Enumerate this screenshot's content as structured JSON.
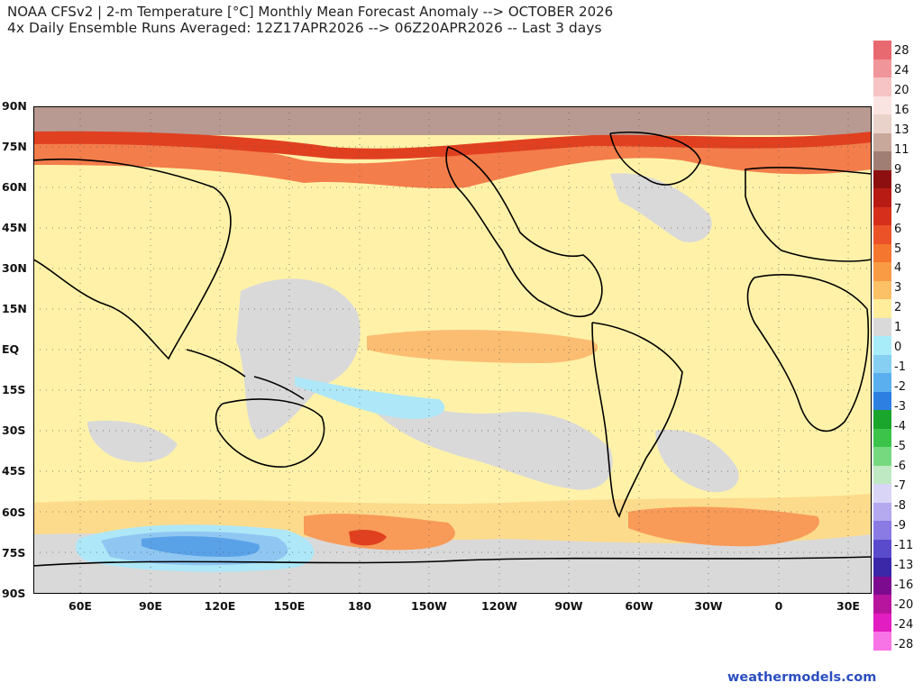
{
  "header": {
    "title_line1": "NOAA CFSv2 | 2-m Temperature [°C] Monthly Mean Forecast Anomaly --> OCTOBER 2026",
    "title_line2": "4x Daily Ensemble Runs Averaged: 12Z17APR2026 --> 06Z20APR2026 -- Last 3 days"
  },
  "map": {
    "lat_labels": [
      "90N",
      "75N",
      "60N",
      "45N",
      "30N",
      "15N",
      "EQ",
      "15S",
      "30S",
      "45S",
      "60S",
      "75S",
      "90S"
    ],
    "lon_labels": [
      "60E",
      "90E",
      "120E",
      "150E",
      "180",
      "150W",
      "120W",
      "90W",
      "60W",
      "30W",
      "0",
      "30E"
    ],
    "colors": {
      "ocean_neutral": "#d9d9d9",
      "warm1": "#fff2a8",
      "warm2": "#fddb8c",
      "warm3": "#fbbd72",
      "warm4": "#f89a58",
      "warm5": "#f27040",
      "warm6": "#e04020",
      "arctic": "#b89a92",
      "cool1": "#aee7f7",
      "cool2": "#8fc7f2",
      "cool3": "#5aa2e8",
      "coast": "#000000"
    }
  },
  "colorbar": {
    "labels": [
      "28",
      "24",
      "20",
      "16",
      "13",
      "11",
      "9",
      "8",
      "7",
      "6",
      "5",
      "4",
      "3",
      "2",
      "1",
      "0",
      "-1",
      "-2",
      "-3",
      "-4",
      "-5",
      "-6",
      "-7",
      "-8",
      "-9",
      "-11",
      "-13",
      "-16",
      "-20",
      "-24",
      "-28"
    ],
    "colors": [
      "#e86a70",
      "#f0959a",
      "#f7c4c5",
      "#fae4e2",
      "#e9d2c9",
      "#c9a89c",
      "#a07e73",
      "#8e0f0f",
      "#b81b14",
      "#d6301c",
      "#eb5228",
      "#f4762f",
      "#f99b45",
      "#fcc067",
      "#ffed9c",
      "#d9d9d9",
      "#a9ecf9",
      "#86cff3",
      "#5ab0ee",
      "#2e7fe2",
      "#1aa52c",
      "#3bc34a",
      "#77d97f",
      "#bfe9c2",
      "#d9d5f7",
      "#b4a8ef",
      "#8a7ae3",
      "#5a4bcd",
      "#3a28a8",
      "#7c0b8f",
      "#b8159e",
      "#e21ec2",
      "#f774e6"
    ]
  },
  "credit": "weathermodels.com"
}
